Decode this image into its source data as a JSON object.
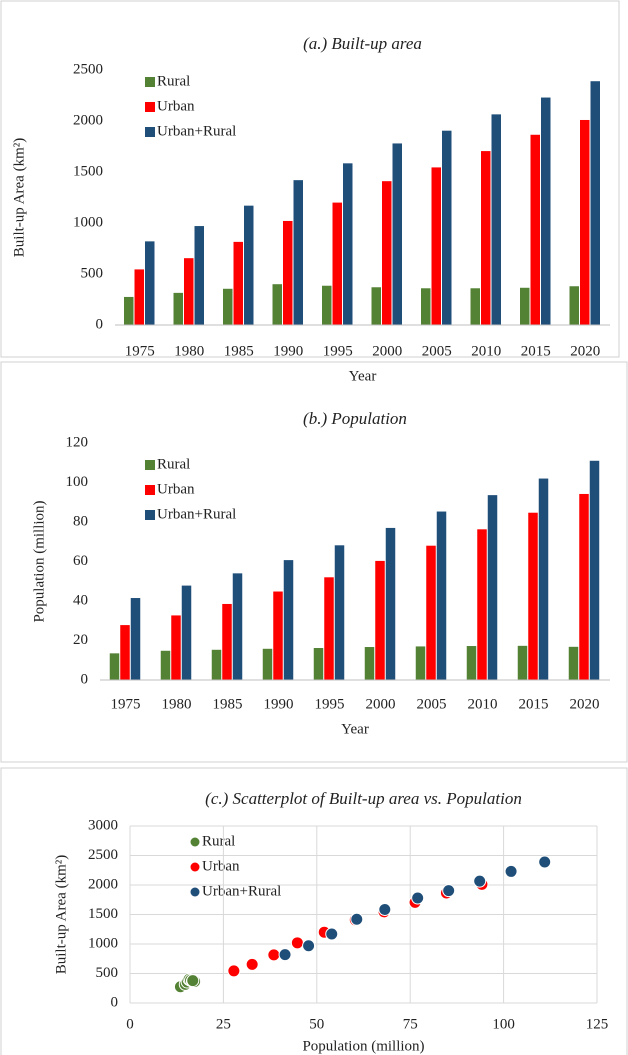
{
  "chart_data": [
    {
      "type": "bar",
      "title": "(a.) Built-up area",
      "x_label": "Year",
      "y_label": "Built-up Area (km²)",
      "categories": [
        "1975",
        "1980",
        "1985",
        "1990",
        "1995",
        "2000",
        "2005",
        "2010",
        "2015",
        "2020"
      ],
      "series": [
        {
          "name": "Rural",
          "color": "#548235",
          "values": [
            275,
            315,
            355,
            400,
            385,
            370,
            360,
            360,
            365,
            380
          ]
        },
        {
          "name": "Urban",
          "color": "#ff0000",
          "values": [
            545,
            655,
            815,
            1020,
            1200,
            1410,
            1545,
            1705,
            1865,
            2010
          ]
        },
        {
          "name": "Urban+Rural",
          "color": "#1f4e79",
          "values": [
            820,
            970,
            1170,
            1420,
            1585,
            1780,
            1905,
            2065,
            2230,
            2390
          ]
        }
      ],
      "ylim": [
        0,
        2500
      ],
      "yticks": [
        0,
        500,
        1000,
        1500,
        2000,
        2500
      ],
      "grid": false,
      "legend": "upper left"
    },
    {
      "type": "bar",
      "title": "(b.) Population",
      "x_label": "Year",
      "y_label": "Population (million)",
      "categories": [
        "1975",
        "1980",
        "1985",
        "1990",
        "1995",
        "2000",
        "2005",
        "2010",
        "2015",
        "2020"
      ],
      "series": [
        {
          "name": "Rural",
          "color": "#548235",
          "values": [
            13.5,
            14.8,
            15.3,
            15.8,
            16.2,
            16.7,
            17,
            17.2,
            17.3,
            16.8
          ]
        },
        {
          "name": "Urban",
          "color": "#ff0000",
          "values": [
            27.8,
            32.7,
            38.5,
            44.8,
            52,
            60.3,
            68,
            76.3,
            84.7,
            94.2
          ]
        },
        {
          "name": "Urban+Rural",
          "color": "#1f4e79",
          "values": [
            41.5,
            47.8,
            54,
            60.7,
            68.2,
            77,
            85.3,
            93.6,
            102,
            111
          ]
        }
      ],
      "ylim": [
        0,
        120
      ],
      "yticks": [
        0,
        20,
        40,
        60,
        80,
        100,
        120
      ],
      "grid": false,
      "legend": "upper left"
    },
    {
      "type": "scatter",
      "title": "(c.) Scatterplot of Built-up area vs. Population",
      "x_label": "Population (million)",
      "y_label": "Built-up Area (km²)",
      "series": [
        {
          "name": "Rural",
          "color": "#548235",
          "x": [
            13.5,
            14.8,
            15.3,
            15.8,
            16.2,
            16.7,
            17,
            17.2,
            17.3,
            16.8
          ],
          "values": [
            275,
            315,
            355,
            400,
            385,
            370,
            360,
            360,
            365,
            380
          ]
        },
        {
          "name": "Urban",
          "color": "#ff0000",
          "x": [
            27.8,
            32.7,
            38.5,
            44.8,
            52,
            60.3,
            68,
            76.3,
            84.7,
            94.2
          ],
          "values": [
            545,
            655,
            815,
            1020,
            1200,
            1410,
            1545,
            1705,
            1865,
            2010
          ]
        },
        {
          "name": "Urban+Rural",
          "color": "#1f4e79",
          "x": [
            41.5,
            47.8,
            54,
            60.7,
            68.2,
            77,
            85.3,
            93.6,
            102,
            111
          ],
          "values": [
            820,
            970,
            1170,
            1420,
            1585,
            1780,
            1905,
            2065,
            2230,
            2390
          ]
        }
      ],
      "xlim": [
        0,
        125
      ],
      "xticks": [
        0,
        25,
        50,
        75,
        100,
        125
      ],
      "ylim": [
        0,
        3000
      ],
      "yticks": [
        0,
        500,
        1000,
        1500,
        2000,
        2500,
        3000
      ],
      "grid": true,
      "legend": "upper left"
    }
  ]
}
